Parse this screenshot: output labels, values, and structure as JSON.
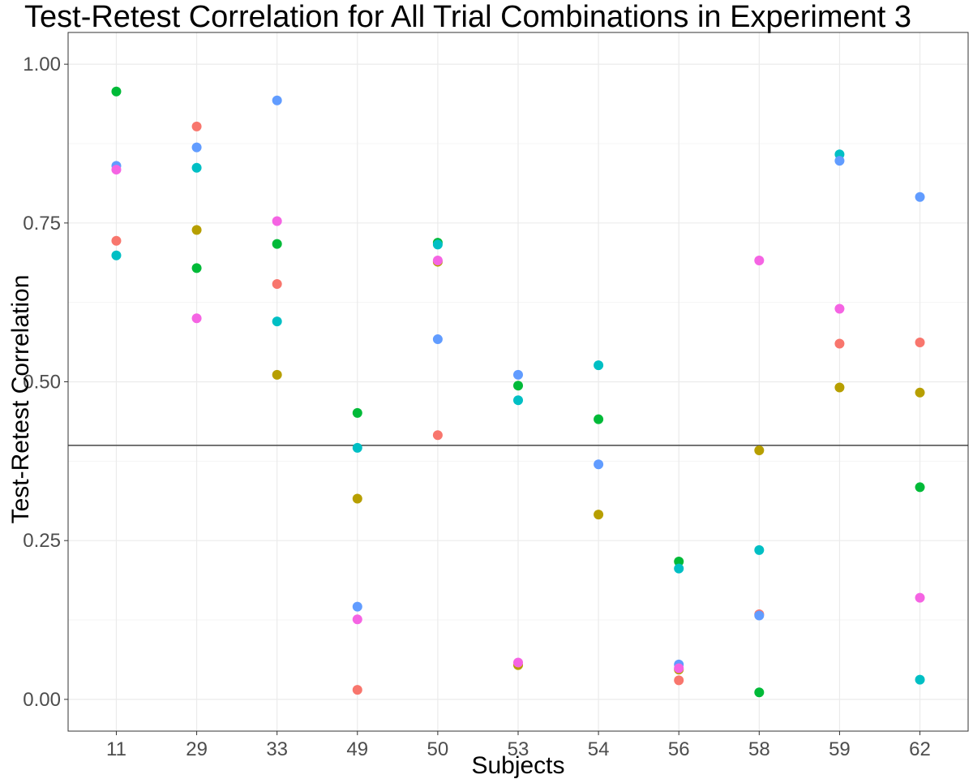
{
  "chart_data": {
    "type": "scatter",
    "title": "Test-Retest Correlation for All Trial Combinations in Experiment 3",
    "xlabel": "Subjects",
    "ylabel": "Test-Retest Correlation",
    "categories": [
      "11",
      "29",
      "33",
      "49",
      "50",
      "53",
      "54",
      "56",
      "58",
      "59",
      "62"
    ],
    "y_ticks": [
      "0.00",
      "0.25",
      "0.50",
      "0.75",
      "1.00"
    ],
    "ylim": [
      -0.05,
      1.05
    ],
    "grid": true,
    "legend": "none",
    "reference_line_y": 0.4,
    "series": [
      {
        "color": "#F8766D",
        "values": [
          0.722,
          0.902,
          0.654,
          0.015,
          0.416,
          null,
          null,
          0.03,
          0.134,
          0.56,
          0.562
        ]
      },
      {
        "color": "#B79F00",
        "values": [
          null,
          0.739,
          0.511,
          0.316,
          0.689,
          0.054,
          0.291,
          0.047,
          0.392,
          0.491,
          0.483
        ]
      },
      {
        "color": "#00BA38",
        "values": [
          0.957,
          0.679,
          0.717,
          0.451,
          0.719,
          0.494,
          0.441,
          0.217,
          0.011,
          null,
          0.334
        ]
      },
      {
        "color": "#00BFC4",
        "values": [
          0.699,
          0.837,
          0.595,
          0.396,
          0.716,
          0.471,
          0.526,
          0.206,
          0.235,
          0.858,
          0.031
        ]
      },
      {
        "color": "#619CFF",
        "values": [
          0.84,
          0.869,
          0.943,
          0.146,
          0.567,
          0.511,
          0.37,
          0.055,
          0.132,
          0.848,
          0.791
        ]
      },
      {
        "color": "#F564E3",
        "values": [
          0.834,
          0.6,
          0.753,
          0.126,
          0.691,
          0.058,
          null,
          0.049,
          0.691,
          0.615,
          0.16
        ]
      }
    ]
  }
}
